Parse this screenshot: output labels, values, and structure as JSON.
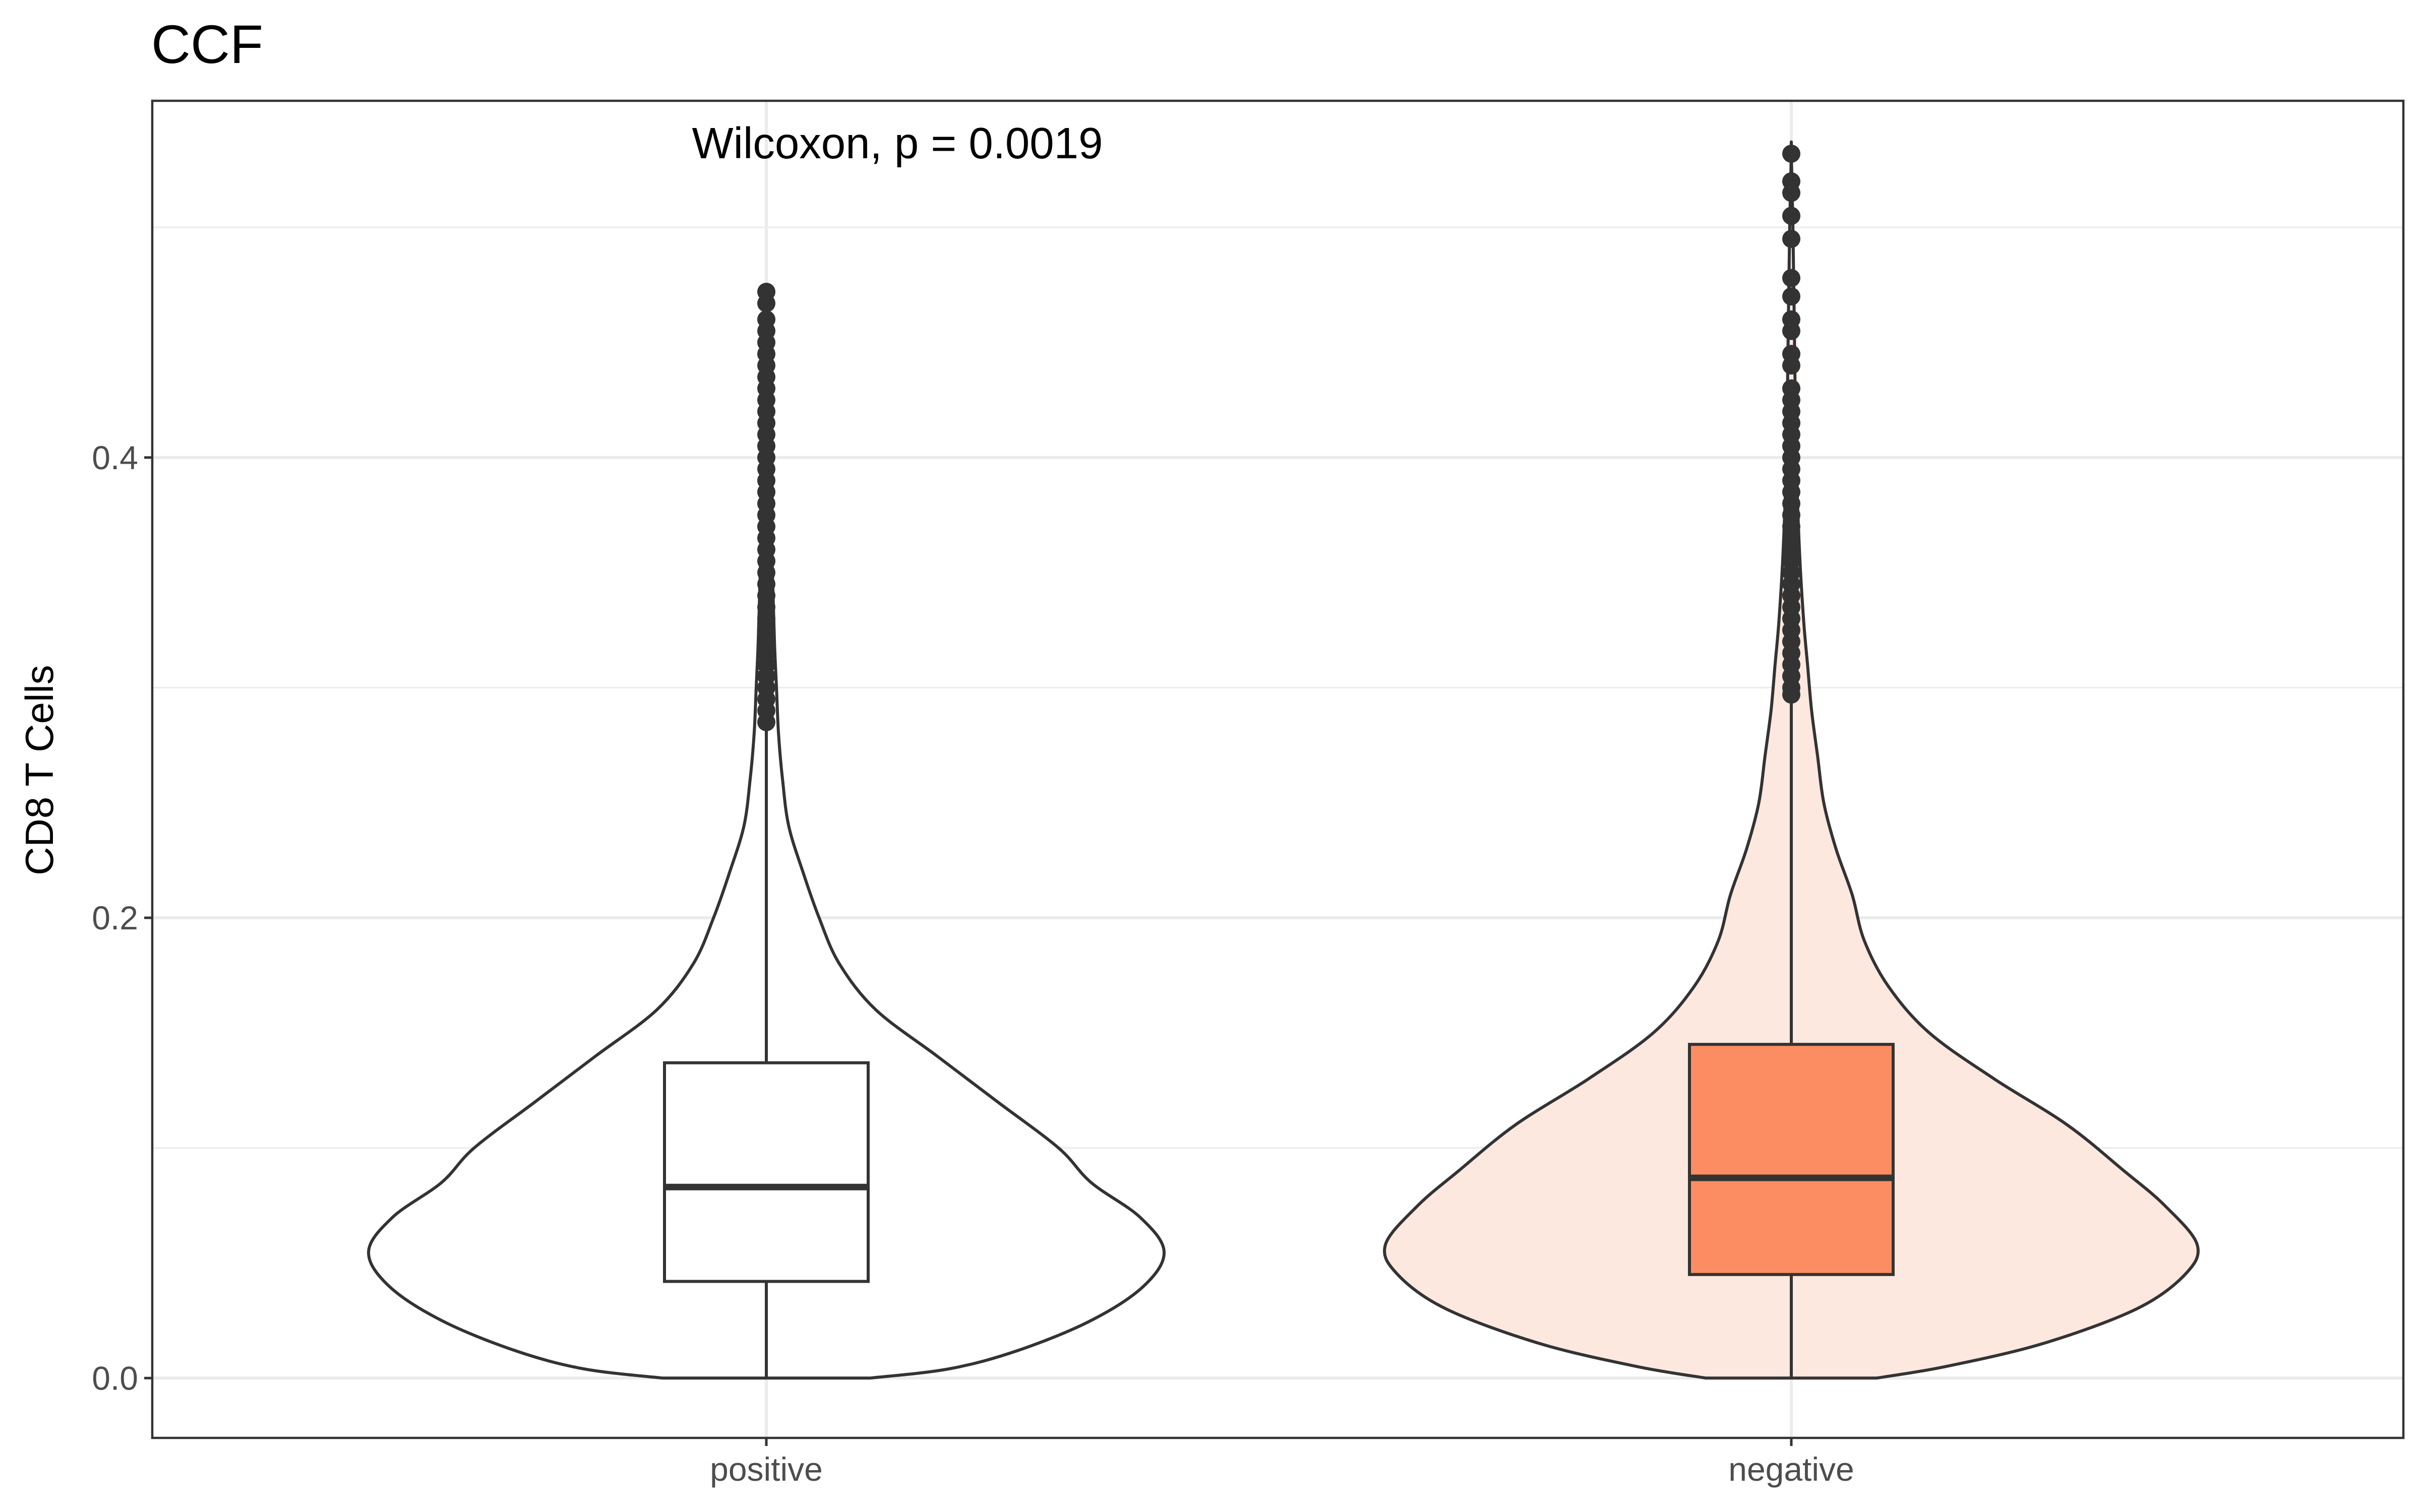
{
  "chart_data": {
    "type": "violin",
    "title": "CCF",
    "xlabel": "",
    "ylabel": "CD8 T Cells",
    "categories": [
      "positive",
      "negative"
    ],
    "y_ticks": [
      "0.0",
      "0.2",
      "0.4"
    ],
    "y_tick_values": [
      0.0,
      0.2,
      0.4
    ],
    "ylim": [
      -0.026,
      0.555
    ],
    "grid": true,
    "annotation": "Wilcoxon, p = 0.0019",
    "colors": {
      "positive_violin_fill": "#ffffff",
      "positive_box_fill": "#ffffff",
      "negative_violin_fill": "#fde8df",
      "negative_box_fill": "#fc8d62",
      "outline": "#333333",
      "grid": "#ebebeb"
    },
    "series": [
      {
        "category": "positive",
        "box": {
          "lower_whisker": 0.0,
          "q1": 0.042,
          "median": 0.083,
          "q3": 0.137,
          "upper_whisker": 0.283
        },
        "outliers": [
          0.285,
          0.29,
          0.295,
          0.3,
          0.305,
          0.31,
          0.315,
          0.32,
          0.325,
          0.33,
          0.335,
          0.34,
          0.345,
          0.35,
          0.355,
          0.36,
          0.365,
          0.37,
          0.375,
          0.38,
          0.385,
          0.39,
          0.395,
          0.4,
          0.405,
          0.41,
          0.415,
          0.42,
          0.425,
          0.43,
          0.435,
          0.44,
          0.445,
          0.45,
          0.455,
          0.46,
          0.467,
          0.472
        ],
        "density_profile": [
          [
            0.0,
            0.255
          ],
          [
            0.004,
            0.45
          ],
          [
            0.012,
            0.62
          ],
          [
            0.025,
            0.8
          ],
          [
            0.04,
            0.93
          ],
          [
            0.055,
            0.98
          ],
          [
            0.07,
            0.92
          ],
          [
            0.085,
            0.8
          ],
          [
            0.1,
            0.72
          ],
          [
            0.12,
            0.57
          ],
          [
            0.14,
            0.42
          ],
          [
            0.16,
            0.27
          ],
          [
            0.18,
            0.18
          ],
          [
            0.2,
            0.13
          ],
          [
            0.22,
            0.09
          ],
          [
            0.24,
            0.055
          ],
          [
            0.26,
            0.04
          ],
          [
            0.28,
            0.03
          ],
          [
            0.3,
            0.025
          ],
          [
            0.32,
            0.02
          ],
          [
            0.35,
            0.015
          ],
          [
            0.38,
            0.01
          ],
          [
            0.42,
            0.007
          ],
          [
            0.46,
            0.004
          ],
          [
            0.473,
            0.0
          ]
        ]
      },
      {
        "category": "negative",
        "box": {
          "lower_whisker": 0.0,
          "q1": 0.045,
          "median": 0.087,
          "q3": 0.145,
          "upper_whisker": 0.295
        },
        "outliers": [
          0.297,
          0.3,
          0.305,
          0.31,
          0.315,
          0.32,
          0.325,
          0.33,
          0.335,
          0.34,
          0.345,
          0.35,
          0.355,
          0.36,
          0.365,
          0.37,
          0.375,
          0.38,
          0.385,
          0.39,
          0.395,
          0.4,
          0.405,
          0.41,
          0.415,
          0.42,
          0.425,
          0.43,
          0.44,
          0.445,
          0.455,
          0.46,
          0.47,
          0.478,
          0.495,
          0.505,
          0.515,
          0.52,
          0.532
        ],
        "density_profile": [
          [
            0.0,
            0.21
          ],
          [
            0.005,
            0.38
          ],
          [
            0.015,
            0.62
          ],
          [
            0.03,
            0.85
          ],
          [
            0.045,
            0.97
          ],
          [
            0.058,
            1.0
          ],
          [
            0.075,
            0.92
          ],
          [
            0.09,
            0.82
          ],
          [
            0.11,
            0.68
          ],
          [
            0.13,
            0.5
          ],
          [
            0.15,
            0.34
          ],
          [
            0.17,
            0.24
          ],
          [
            0.19,
            0.18
          ],
          [
            0.21,
            0.15
          ],
          [
            0.23,
            0.11
          ],
          [
            0.25,
            0.08
          ],
          [
            0.27,
            0.065
          ],
          [
            0.29,
            0.05
          ],
          [
            0.31,
            0.04
          ],
          [
            0.33,
            0.03
          ],
          [
            0.36,
            0.02
          ],
          [
            0.4,
            0.012
          ],
          [
            0.45,
            0.008
          ],
          [
            0.5,
            0.004
          ],
          [
            0.533,
            0.0
          ]
        ]
      }
    ]
  }
}
